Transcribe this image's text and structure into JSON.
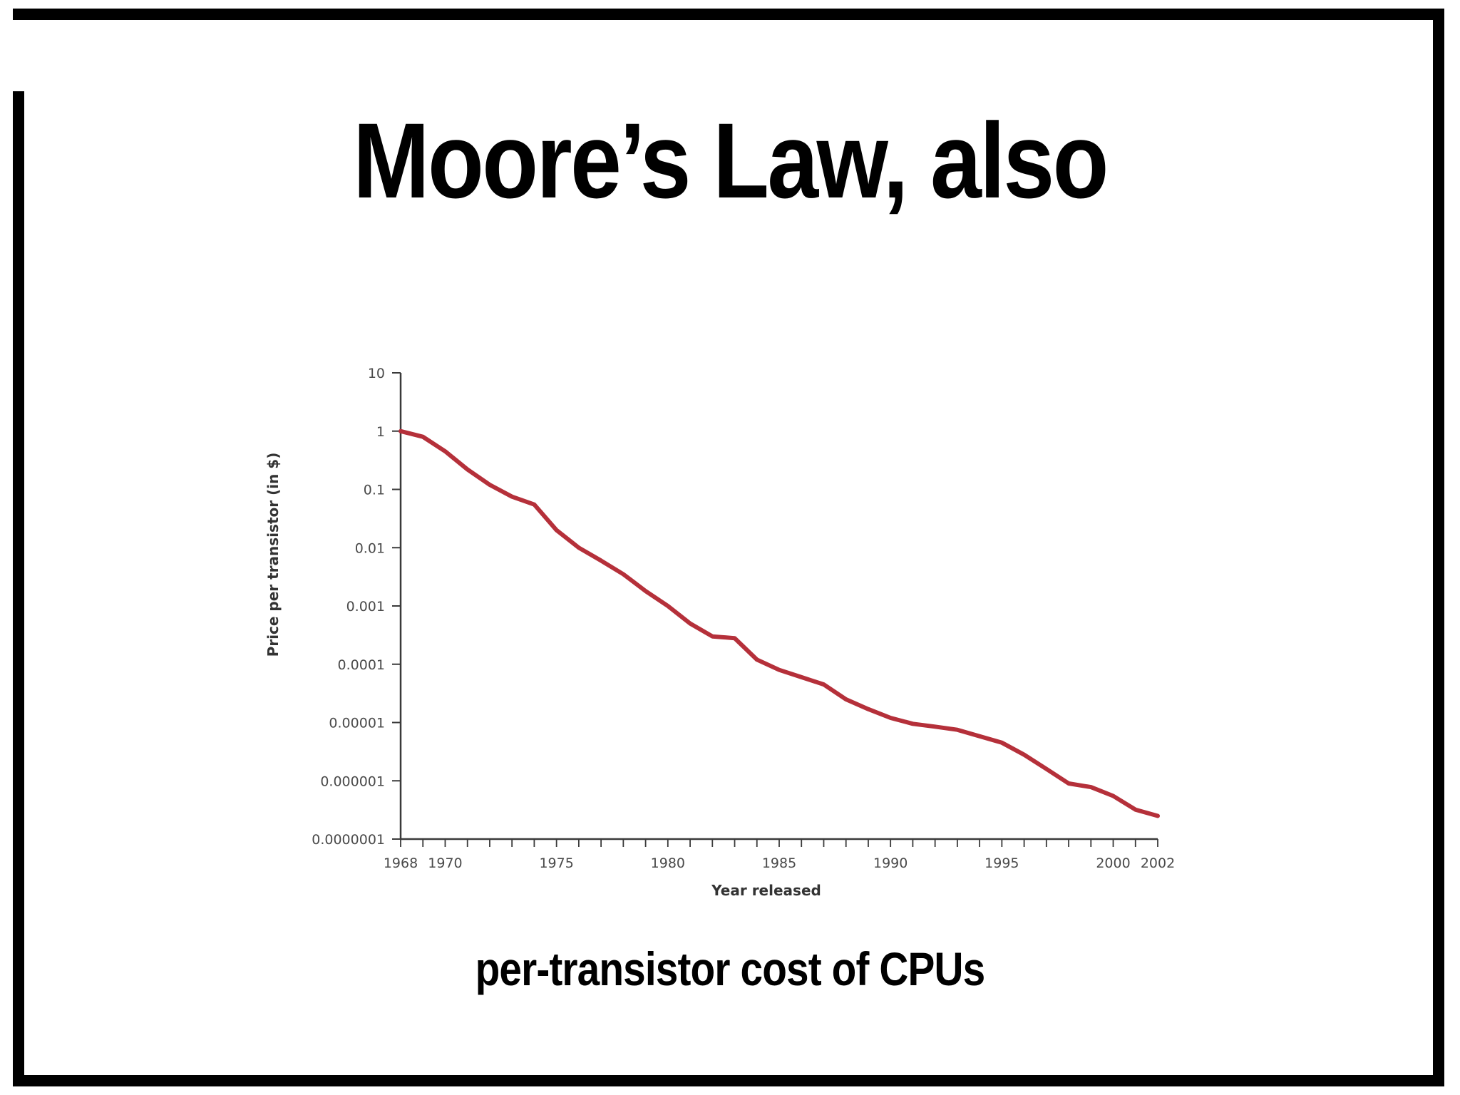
{
  "slide": {
    "title": "Moore’s Law, also",
    "caption": "per-transistor cost of CPUs"
  },
  "colors": {
    "frame": "#000000",
    "axis": "#3a3a3a",
    "line": "#b5303a"
  },
  "chart_data": {
    "type": "line",
    "title": "",
    "xlabel": "Year released",
    "ylabel": "Price per transistor (in $)",
    "xlim": [
      1968,
      2002
    ],
    "ylim": [
      1e-07,
      10
    ],
    "y_scale": "log",
    "grid": false,
    "x_ticks": [
      1968,
      1970,
      1975,
      1980,
      1985,
      1990,
      1995,
      2000,
      2002
    ],
    "x_tick_labels": [
      "1968",
      "1970",
      "1975",
      "1980",
      "1985",
      "1990",
      "1995",
      "2000",
      "2002"
    ],
    "y_ticks": [
      10,
      1,
      0.1,
      0.01,
      0.001,
      0.0001,
      1e-05,
      1e-06,
      1e-07
    ],
    "y_tick_labels": [
      "10",
      "1",
      "0.1",
      "0.01",
      "0.001",
      "0.0001",
      "0.00001",
      "0.000001",
      "0.0000001"
    ],
    "series": [
      {
        "x": [
          1968,
          1969,
          1970,
          1971,
          1972,
          1973,
          1974,
          1975,
          1976,
          1977,
          1978,
          1979,
          1980,
          1981,
          1982,
          1983,
          1984,
          1985,
          1986,
          1987,
          1988,
          1989,
          1990,
          1991,
          1992,
          1993,
          1994,
          1995,
          1996,
          1997,
          1998,
          1999,
          2000,
          2001,
          2002
        ],
        "values": [
          1,
          0.8,
          0.45,
          0.22,
          0.12,
          0.075,
          0.055,
          0.02,
          0.01,
          0.006,
          0.0035,
          0.0018,
          0.001,
          0.0005,
          0.0003,
          0.00028,
          0.00012,
          8e-05,
          6e-05,
          4.5e-05,
          2.5e-05,
          1.7e-05,
          1.2e-05,
          9.5e-06,
          8.5e-06,
          7.5e-06,
          5.8e-06,
          4.5e-06,
          2.8e-06,
          1.6e-06,
          9e-07,
          7.8e-07,
          5.5e-07,
          3.2e-07,
          2.5e-07
        ]
      }
    ]
  }
}
